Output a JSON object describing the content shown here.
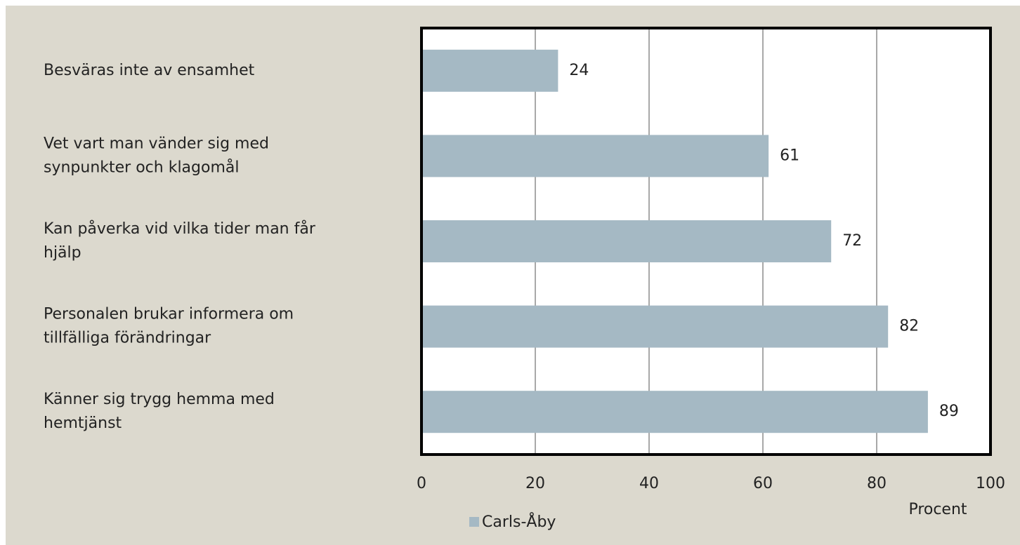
{
  "chart_data": {
    "type": "bar",
    "orientation": "horizontal",
    "categories": [
      [
        "Besväras inte av ensamhet"
      ],
      [
        "Vet vart man vänder sig med",
        "synpunkter och klagomål"
      ],
      [
        "Kan påverka vid vilka tider man får",
        "hjälp"
      ],
      [
        "Personalen brukar informera om",
        "tillfälliga förändringar"
      ],
      [
        "Känner sig trygg hemma med",
        "hemtjänst"
      ]
    ],
    "series": [
      {
        "name": "Carls-Åby",
        "color": "#a5b9c4",
        "values": [
          24,
          61,
          72,
          82,
          89
        ]
      }
    ],
    "xlabel": "Procent",
    "xlim": [
      0,
      100
    ],
    "xticks": [
      0,
      20,
      40,
      60,
      80,
      100
    ],
    "grid": true
  }
}
